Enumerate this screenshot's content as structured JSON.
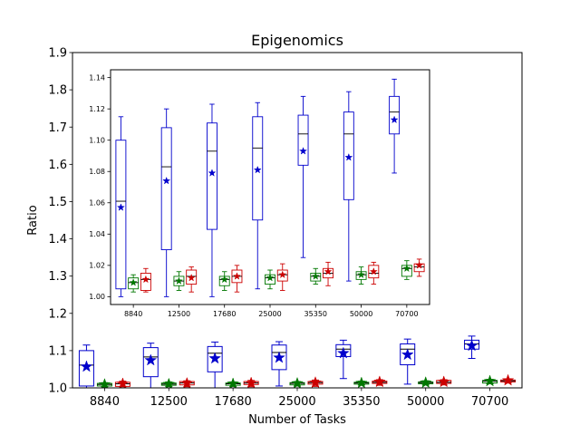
{
  "title": "Epigenomics",
  "chart_data": {
    "type": "box",
    "title": "Epigenomics",
    "xlabel": "Number of Tasks",
    "ylabel": "Ratio",
    "categories": [
      "8840",
      "12500",
      "17680",
      "25000",
      "35350",
      "50000",
      "70700"
    ],
    "main_axis": {
      "ylim": [
        1.0,
        1.9
      ],
      "yticks": [
        "1.0",
        "1.1",
        "1.2",
        "1.3",
        "1.4",
        "1.5",
        "1.6",
        "1.7",
        "1.8",
        "1.9"
      ]
    },
    "inset_axis": {
      "ylim": [
        0.995,
        1.145
      ],
      "yticks": [
        "1.00",
        "1.02",
        "1.04",
        "1.06",
        "1.08",
        "1.10",
        "1.12",
        "1.14"
      ]
    },
    "series": [
      {
        "color": "#0000cc",
        "boxes": [
          {
            "min": 1.0,
            "q1": 1.005,
            "median": 1.061,
            "q3": 1.1,
            "max": 1.115,
            "mean": 1.057
          },
          {
            "min": 1.0,
            "q1": 1.03,
            "median": 1.083,
            "q3": 1.108,
            "max": 1.12,
            "mean": 1.074
          },
          {
            "min": 1.0,
            "q1": 1.043,
            "median": 1.093,
            "q3": 1.111,
            "max": 1.123,
            "mean": 1.079
          },
          {
            "min": 1.005,
            "q1": 1.049,
            "median": 1.095,
            "q3": 1.115,
            "max": 1.124,
            "mean": 1.081
          },
          {
            "min": 1.025,
            "q1": 1.084,
            "median": 1.104,
            "q3": 1.116,
            "max": 1.128,
            "mean": 1.093
          },
          {
            "min": 1.01,
            "q1": 1.062,
            "median": 1.104,
            "q3": 1.118,
            "max": 1.131,
            "mean": 1.089
          },
          {
            "min": 1.079,
            "q1": 1.104,
            "median": 1.118,
            "q3": 1.128,
            "max": 1.139,
            "mean": 1.113
          }
        ]
      },
      {
        "color": "#007700",
        "boxes": [
          {
            "min": 1.003,
            "q1": 1.005,
            "median": 1.009,
            "q3": 1.012,
            "max": 1.014,
            "mean": 1.009
          },
          {
            "min": 1.004,
            "q1": 1.007,
            "median": 1.01,
            "q3": 1.013,
            "max": 1.016,
            "mean": 1.01
          },
          {
            "min": 1.004,
            "q1": 1.007,
            "median": 1.011,
            "q3": 1.013,
            "max": 1.016,
            "mean": 1.011
          },
          {
            "min": 1.005,
            "q1": 1.008,
            "median": 1.012,
            "q3": 1.014,
            "max": 1.017,
            "mean": 1.012
          },
          {
            "min": 1.008,
            "q1": 1.01,
            "median": 1.013,
            "q3": 1.015,
            "max": 1.018,
            "mean": 1.013
          },
          {
            "min": 1.008,
            "q1": 1.011,
            "median": 1.014,
            "q3": 1.016,
            "max": 1.019,
            "mean": 1.014
          },
          {
            "min": 1.011,
            "q1": 1.013,
            "median": 1.018,
            "q3": 1.02,
            "max": 1.023,
            "mean": 1.018
          }
        ]
      },
      {
        "color": "#cc0000",
        "boxes": [
          {
            "min": 1.003,
            "q1": 1.004,
            "median": 1.011,
            "q3": 1.015,
            "max": 1.018,
            "mean": 1.011
          },
          {
            "min": 1.003,
            "q1": 1.008,
            "median": 1.013,
            "q3": 1.017,
            "max": 1.019,
            "mean": 1.012
          },
          {
            "min": 1.003,
            "q1": 1.009,
            "median": 1.013,
            "q3": 1.017,
            "max": 1.02,
            "mean": 1.013
          },
          {
            "min": 1.004,
            "q1": 1.01,
            "median": 1.014,
            "q3": 1.017,
            "max": 1.021,
            "mean": 1.014
          },
          {
            "min": 1.007,
            "q1": 1.012,
            "median": 1.015,
            "q3": 1.018,
            "max": 1.022,
            "mean": 1.016
          },
          {
            "min": 1.008,
            "q1": 1.012,
            "median": 1.015,
            "q3": 1.02,
            "max": 1.022,
            "mean": 1.016
          },
          {
            "min": 1.013,
            "q1": 1.016,
            "median": 1.019,
            "q3": 1.021,
            "max": 1.024,
            "mean": 1.02
          }
        ]
      }
    ]
  }
}
